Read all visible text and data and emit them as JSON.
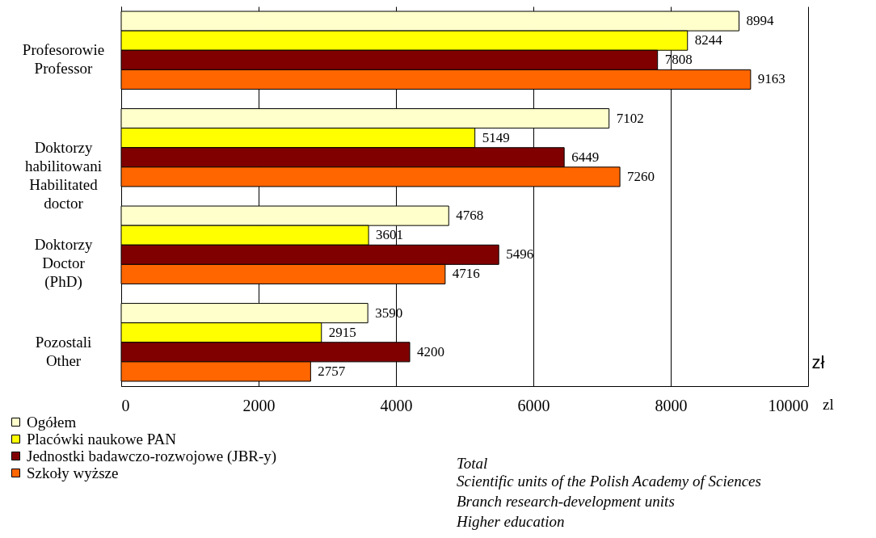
{
  "chart_data": {
    "type": "bar",
    "orientation": "horizontal",
    "xlabel": "zł",
    "categories": [
      "Profesorowie\nProfessor",
      "Doktorzy\nhabilitowani\nHabilitated\ndoctor",
      "Doktorzy\nDoctor\n(PhD)",
      "Pozostali\nOther"
    ],
    "series": [
      {
        "name": "Ogółem",
        "color": "#ffffcc",
        "values": [
          8994,
          7102,
          4768,
          3590
        ]
      },
      {
        "name": "Placówki naukowe PAN",
        "color": "#ffff00",
        "values": [
          8244,
          5149,
          3601,
          2915
        ]
      },
      {
        "name": "Jednostki badawczo-rozwojowe (JBR-y)",
        "color": "#800000",
        "values": [
          7808,
          6449,
          5496,
          4200
        ]
      },
      {
        "name": "Szkoły wyższe",
        "color": "#ff6600",
        "values": [
          9163,
          7260,
          4716,
          2757
        ]
      }
    ],
    "xlim": [
      0,
      10000
    ],
    "xticks": [
      0,
      2000,
      4000,
      6000,
      8000,
      10000
    ],
    "grid": "x",
    "legend": "bottom left",
    "data_labels": true,
    "annotations": [
      "zl",
      "Total",
      "Scientific units of the Polish Academy of Sciences",
      "Branch research-development units",
      "Higher education"
    ]
  }
}
